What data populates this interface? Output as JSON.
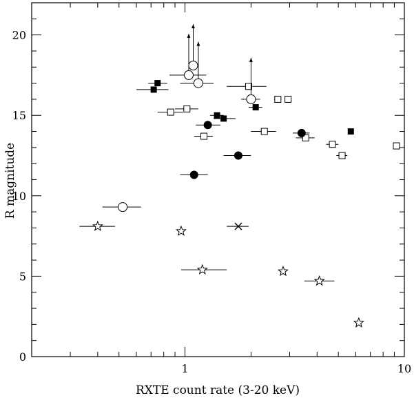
{
  "chart_data": {
    "type": "scatter",
    "xlabel": "RXTE count rate (3-20 keV)",
    "ylabel": "R magnitude",
    "xscale": "log",
    "xlim": [
      0.2,
      10
    ],
    "ylim": [
      0,
      22
    ],
    "x_ticks": [
      1,
      10
    ],
    "x_tick_labels": [
      "1",
      "10"
    ],
    "y_ticks": [
      0,
      5,
      10,
      15,
      20
    ],
    "y_tick_labels": [
      "0",
      "5",
      "10",
      "15",
      "20"
    ],
    "grid": false,
    "series": [
      {
        "marker": "filled-square",
        "points": [
          {
            "x": 0.75,
            "y": 17.0,
            "xerr": [
              0.68,
              0.83
            ]
          },
          {
            "x": 0.72,
            "y": 16.6,
            "xerr": [
              0.6,
              0.84
            ]
          },
          {
            "x": 1.4,
            "y": 15.0,
            "xerr": [
              1.3,
              1.5
            ]
          },
          {
            "x": 1.5,
            "y": 14.8,
            "xerr": [
              1.35,
              1.7
            ]
          },
          {
            "x": 2.1,
            "y": 15.5,
            "xerr": [
              1.95,
              2.25
            ]
          },
          {
            "x": 5.7,
            "y": 14.0,
            "xerr": [
              5.7,
              5.7
            ]
          }
        ]
      },
      {
        "marker": "open-square",
        "points": [
          {
            "x": 0.86,
            "y": 15.2,
            "xerr": [
              0.75,
              0.98
            ]
          },
          {
            "x": 1.02,
            "y": 15.4,
            "xerr": [
              0.9,
              1.15
            ]
          },
          {
            "x": 1.22,
            "y": 13.7,
            "xerr": [
              1.1,
              1.34
            ]
          },
          {
            "x": 1.95,
            "y": 16.8,
            "xerr": [
              1.55,
              2.35
            ]
          },
          {
            "x": 2.3,
            "y": 14.0,
            "xerr": [
              2.0,
              2.6
            ]
          },
          {
            "x": 2.65,
            "y": 16.0,
            "xerr": [
              2.55,
              2.75
            ]
          },
          {
            "x": 2.95,
            "y": 16.0,
            "xerr": [
              2.85,
              3.05
            ]
          },
          {
            "x": 3.55,
            "y": 13.6,
            "xerr": [
              3.2,
              3.9
            ]
          },
          {
            "x": 4.7,
            "y": 13.2,
            "xerr": [
              4.4,
              5.0
            ]
          },
          {
            "x": 5.2,
            "y": 12.5,
            "xerr": [
              4.9,
              5.5
            ]
          },
          {
            "x": 9.2,
            "y": 13.1,
            "xerr": [
              9.2,
              9.2
            ]
          }
        ]
      },
      {
        "marker": "filled-circle",
        "points": [
          {
            "x": 1.27,
            "y": 14.4,
            "xerr": [
              1.12,
              1.45
            ]
          },
          {
            "x": 1.75,
            "y": 12.5,
            "xerr": [
              1.5,
              2.0
            ]
          },
          {
            "x": 1.1,
            "y": 11.3,
            "xerr": [
              0.95,
              1.27
            ]
          },
          {
            "x": 3.4,
            "y": 13.9,
            "xerr": [
              3.1,
              3.7
            ]
          }
        ]
      },
      {
        "marker": "open-circle",
        "points": [
          {
            "x": 1.04,
            "y": 17.5,
            "xerr": [
              0.85,
              1.25
            ],
            "upper_limit": true
          },
          {
            "x": 1.09,
            "y": 18.1,
            "xerr": [
              1.09,
              1.09
            ],
            "upper_limit": true
          },
          {
            "x": 1.15,
            "y": 17.0,
            "xerr": [
              0.95,
              1.35
            ],
            "upper_limit": true
          },
          {
            "x": 2.0,
            "y": 16.0,
            "xerr": [
              1.8,
              2.2
            ],
            "upper_limit": true
          },
          {
            "x": 0.52,
            "y": 9.3,
            "xerr": [
              0.42,
              0.63
            ]
          }
        ]
      },
      {
        "marker": "open-star",
        "points": [
          {
            "x": 0.4,
            "y": 8.1,
            "xerr": [
              0.33,
              0.48
            ]
          },
          {
            "x": 0.96,
            "y": 7.8,
            "xerr": [
              0.96,
              0.96
            ]
          },
          {
            "x": 1.2,
            "y": 5.4,
            "xerr": [
              0.96,
              1.55
            ]
          },
          {
            "x": 2.8,
            "y": 5.3,
            "xerr": [
              2.8,
              2.8
            ]
          },
          {
            "x": 4.1,
            "y": 4.7,
            "xerr": [
              3.5,
              4.8
            ]
          },
          {
            "x": 6.2,
            "y": 2.1,
            "xerr": [
              6.2,
              6.2
            ]
          }
        ]
      },
      {
        "marker": "cross",
        "points": [
          {
            "x": 1.75,
            "y": 8.1,
            "xerr": [
              1.55,
              1.95
            ]
          }
        ]
      }
    ]
  }
}
